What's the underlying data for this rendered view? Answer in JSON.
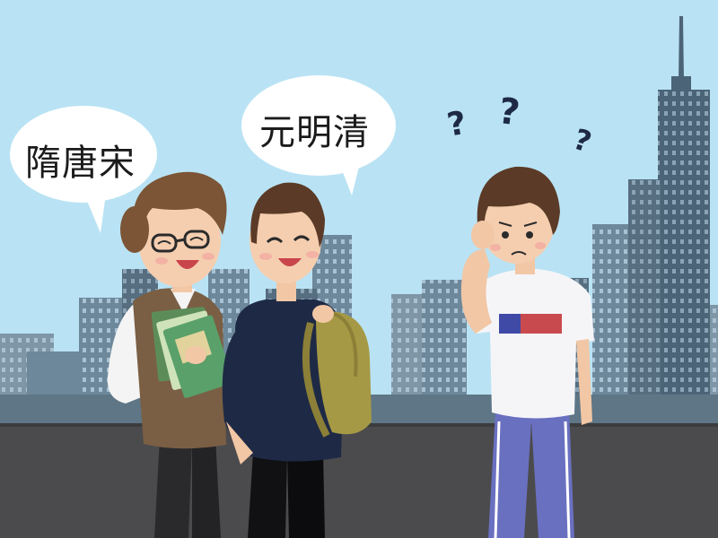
{
  "scene": {
    "speech_left": "隋唐宋",
    "speech_middle": "元明清",
    "confusion_marks": [
      "?",
      "?",
      "?"
    ],
    "colors": {
      "sky": "#b9e3f4",
      "road": "#4b4b4d",
      "buildings_far": "#6c8597",
      "buildings_near": "#4c6477",
      "teacher_vest": "#7a5f44",
      "student_shirt": "#1e2a45",
      "backpack": "#a69945",
      "book_green": "#5aa06a",
      "track_pants": "#6a70c0"
    }
  }
}
